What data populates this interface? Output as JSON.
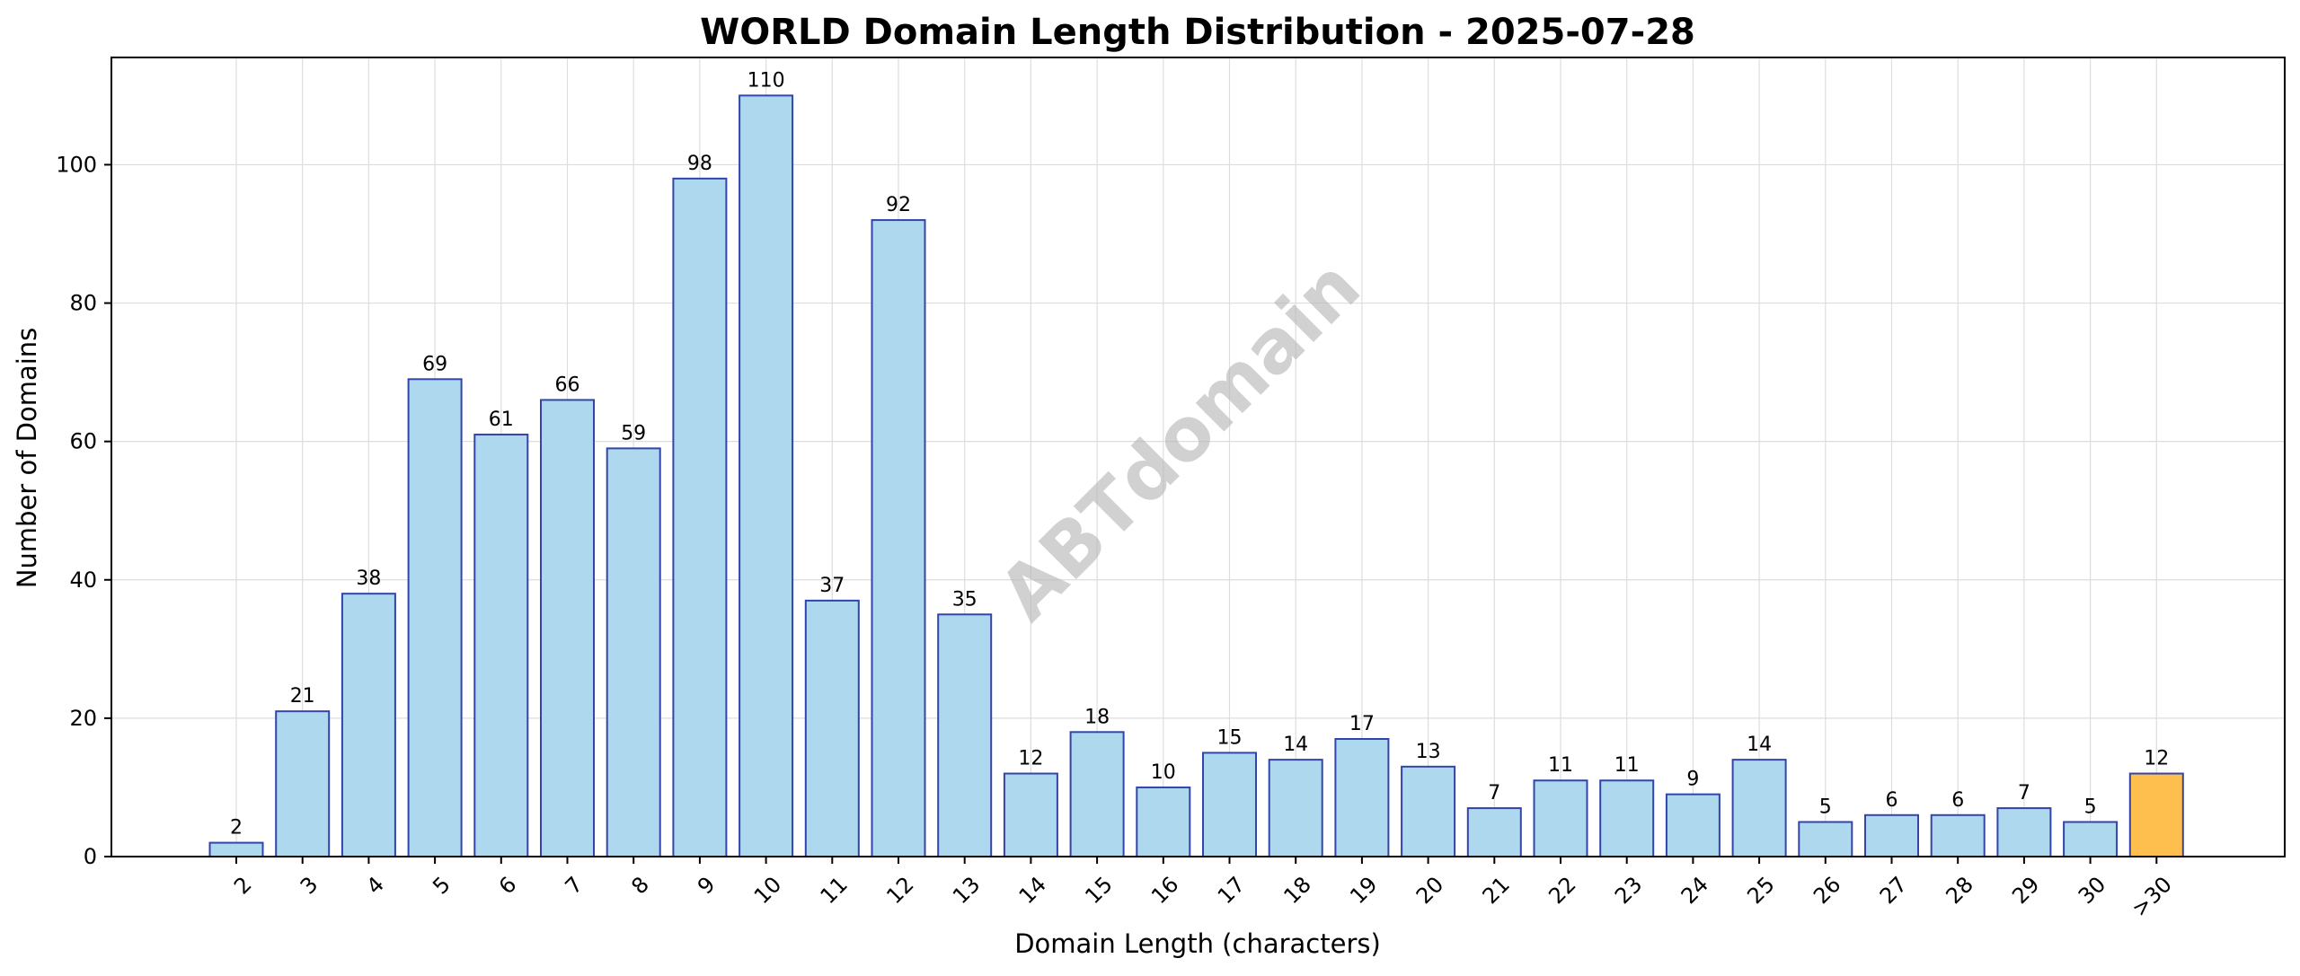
{
  "chart_data": {
    "type": "bar",
    "title": "WORLD Domain Length Distribution - 2025-07-28",
    "xlabel": "Domain Length (characters)",
    "ylabel": "Number of Domains",
    "categories": [
      "2",
      "3",
      "4",
      "5",
      "6",
      "7",
      "8",
      "9",
      "10",
      "11",
      "12",
      "13",
      "14",
      "15",
      "16",
      "17",
      "18",
      "19",
      "20",
      "21",
      "22",
      "23",
      "24",
      "25",
      "26",
      "27",
      "28",
      "29",
      "30",
      ">30"
    ],
    "values": [
      2,
      21,
      38,
      69,
      61,
      66,
      59,
      98,
      110,
      37,
      92,
      35,
      12,
      18,
      10,
      15,
      14,
      17,
      13,
      7,
      11,
      11,
      9,
      14,
      5,
      6,
      6,
      7,
      5,
      12
    ],
    "ylim": [
      0,
      115.5
    ],
    "yticks": [
      0,
      20,
      40,
      60,
      80,
      100
    ],
    "grid": true,
    "watermark": "ABTdomain",
    "colors": {
      "bar_fill": "#add8ee",
      "bar_edge": "#3344aa",
      "highlight_fill": "#ffbf4f",
      "highlight_edge": "#3344aa"
    },
    "highlight_category": ">30"
  }
}
